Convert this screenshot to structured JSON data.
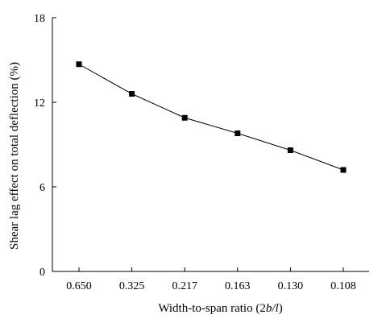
{
  "chart_data": {
    "type": "line",
    "categories": [
      "0.650",
      "0.325",
      "0.217",
      "0.163",
      "0.130",
      "0.108"
    ],
    "series": [
      {
        "values": [
          14.7,
          12.6,
          10.9,
          9.8,
          8.6,
          7.2
        ]
      }
    ],
    "xlabel_parts": [
      {
        "text": "Width-to-span ratio (2"
      },
      {
        "text": "b/l",
        "italic": true
      },
      {
        "text": ")"
      }
    ],
    "ylabel": "Shear lag effect on total deflection (%)",
    "ylim": [
      0,
      18
    ],
    "yticks": [
      0,
      6,
      12,
      18
    ],
    "grid": false,
    "marker": "square",
    "color": "#000000"
  }
}
